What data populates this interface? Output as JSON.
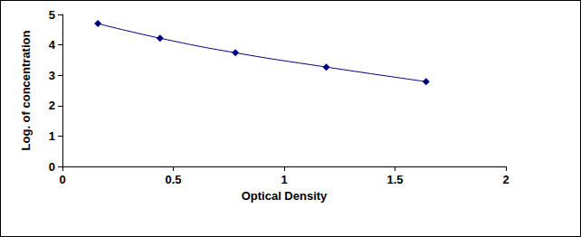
{
  "chart_data": {
    "type": "line",
    "xlabel": "Optical Density",
    "ylabel": "Log. of concentration",
    "x": [
      0.16,
      0.44,
      0.78,
      1.19,
      1.64
    ],
    "values": [
      4.7,
      4.22,
      3.74,
      3.27,
      2.79
    ],
    "color": "#000080",
    "marker": "diamond",
    "xlim": [
      0,
      2
    ],
    "xticks": [
      0,
      0.5,
      1,
      1.5,
      2
    ],
    "ylim": [
      0,
      5
    ],
    "yticks": [
      0,
      1,
      2,
      3,
      4,
      5
    ],
    "grid": false
  }
}
